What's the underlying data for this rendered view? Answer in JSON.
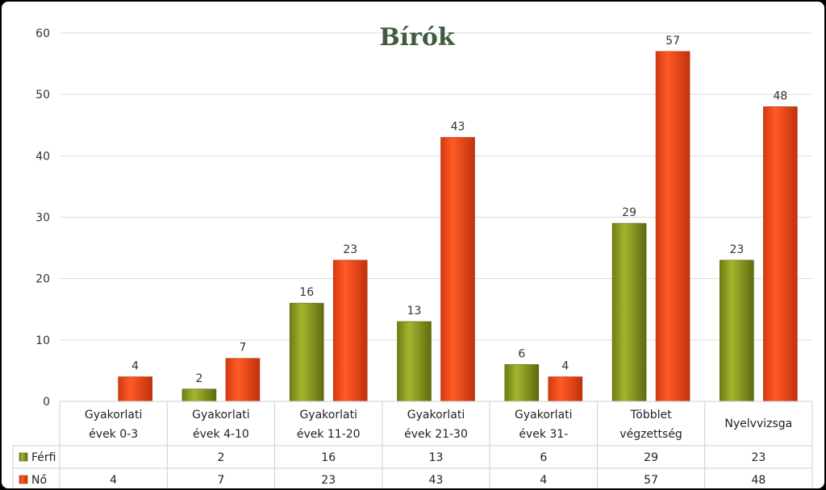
{
  "chart_data": {
    "type": "bar",
    "title": "Bírók",
    "categories": [
      [
        "Gyakorlati",
        "évek 0-3"
      ],
      [
        "Gyakorlati",
        "évek 4-10"
      ],
      [
        "Gyakorlati",
        "évek 11-20"
      ],
      [
        "Gyakorlati",
        "évek 21-30"
      ],
      [
        "Gyakorlati",
        "évek 31-"
      ],
      [
        "Többlet",
        "végzettség"
      ],
      [
        "Nyelvvizsga"
      ]
    ],
    "series": [
      {
        "name": "Férfi",
        "values": [
          null,
          2,
          16,
          13,
          6,
          29,
          23
        ],
        "color": "#8a9a1f"
      },
      {
        "name": "Nő",
        "values": [
          4,
          7,
          23,
          43,
          4,
          57,
          48
        ],
        "color": "#f04a1a"
      }
    ],
    "y_ticks": [
      "0",
      "10",
      "20",
      "30",
      "40",
      "50",
      "60"
    ],
    "ylim": [
      0,
      60
    ],
    "grid": true,
    "legend": "data-table"
  }
}
